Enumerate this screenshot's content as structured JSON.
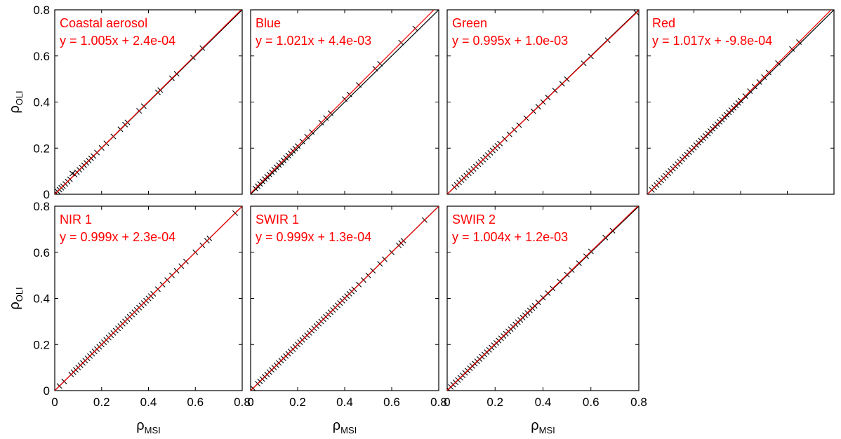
{
  "y_axis_label": {
    "symbol": "ρ",
    "subscript": "OLI"
  },
  "x_axis_label": {
    "symbol": "ρ",
    "subscript": "MSI"
  },
  "chart_data": [
    {
      "type": "scatter",
      "name": "Coastal aerosol",
      "fit_label": "y = 1.005x + 2.4e-04",
      "slope": 1.005,
      "intercept": 0.00024,
      "xlim": [
        0,
        0.8
      ],
      "ylim": [
        0,
        0.8
      ],
      "xticks": [
        "0",
        "0.2",
        "0.4",
        "0.6",
        "0.8"
      ],
      "yticks": [
        "0",
        "0.2",
        "0.4",
        "0.6",
        "0.8"
      ],
      "x": [
        0.005,
        0.012,
        0.02,
        0.028,
        0.035,
        0.045,
        0.055,
        0.065,
        0.075,
        0.085,
        0.095,
        0.105,
        0.115,
        0.125,
        0.135,
        0.145,
        0.155,
        0.165,
        0.18,
        0.2,
        0.22,
        0.25,
        0.28,
        0.3,
        0.31,
        0.36,
        0.38,
        0.44,
        0.45,
        0.5,
        0.52,
        0.59,
        0.63
      ],
      "y": [
        0.006,
        0.012,
        0.02,
        0.028,
        0.035,
        0.045,
        0.055,
        0.065,
        0.09,
        0.085,
        0.095,
        0.106,
        0.116,
        0.126,
        0.136,
        0.146,
        0.156,
        0.166,
        0.181,
        0.201,
        0.221,
        0.251,
        0.282,
        0.302,
        0.312,
        0.362,
        0.382,
        0.442,
        0.452,
        0.503,
        0.523,
        0.593,
        0.634
      ]
    },
    {
      "type": "scatter",
      "name": "Blue",
      "fit_label": "y = 1.021x + 4.4e-03",
      "slope": 1.021,
      "intercept": 0.0044,
      "xlim": [
        0,
        0.8
      ],
      "ylim": [
        0,
        0.8
      ],
      "xticks": [
        "0",
        "0.2",
        "0.4",
        "0.6",
        "0.8"
      ],
      "yticks": [
        "0",
        "0.2",
        "0.4",
        "0.6",
        "0.8"
      ],
      "x": [
        0.02,
        0.03,
        0.04,
        0.05,
        0.06,
        0.07,
        0.08,
        0.09,
        0.1,
        0.11,
        0.12,
        0.13,
        0.14,
        0.15,
        0.16,
        0.17,
        0.18,
        0.19,
        0.2,
        0.22,
        0.24,
        0.26,
        0.3,
        0.32,
        0.34,
        0.4,
        0.42,
        0.46,
        0.53,
        0.55,
        0.64,
        0.7
      ],
      "y": [
        0.025,
        0.035,
        0.045,
        0.056,
        0.066,
        0.076,
        0.086,
        0.096,
        0.107,
        0.117,
        0.127,
        0.137,
        0.147,
        0.158,
        0.168,
        0.178,
        0.188,
        0.198,
        0.209,
        0.229,
        0.25,
        0.27,
        0.311,
        0.331,
        0.352,
        0.413,
        0.433,
        0.474,
        0.545,
        0.566,
        0.658,
        0.719
      ]
    },
    {
      "type": "scatter",
      "name": "Green",
      "fit_label": "y = 0.995x + 1.0e-03",
      "slope": 0.995,
      "intercept": 0.001,
      "xlim": [
        0,
        0.8
      ],
      "ylim": [
        0,
        0.8
      ],
      "xticks": [
        "0",
        "0.2",
        "0.4",
        "0.6",
        "0.8"
      ],
      "yticks": [
        "0",
        "0.2",
        "0.4",
        "0.6",
        "0.8"
      ],
      "x": [
        0.03,
        0.04,
        0.05,
        0.06,
        0.07,
        0.08,
        0.09,
        0.1,
        0.11,
        0.12,
        0.13,
        0.14,
        0.15,
        0.16,
        0.17,
        0.18,
        0.19,
        0.2,
        0.21,
        0.22,
        0.24,
        0.26,
        0.28,
        0.3,
        0.33,
        0.36,
        0.38,
        0.4,
        0.42,
        0.45,
        0.48,
        0.5,
        0.57,
        0.6,
        0.67,
        0.79
      ],
      "y": [
        0.031,
        0.041,
        0.051,
        0.061,
        0.071,
        0.081,
        0.091,
        0.1,
        0.11,
        0.12,
        0.13,
        0.14,
        0.15,
        0.16,
        0.17,
        0.18,
        0.19,
        0.2,
        0.21,
        0.22,
        0.24,
        0.26,
        0.28,
        0.3,
        0.33,
        0.36,
        0.38,
        0.4,
        0.42,
        0.45,
        0.479,
        0.499,
        0.568,
        0.598,
        0.668,
        0.787
      ]
    },
    {
      "type": "scatter",
      "name": "Red",
      "fit_label": "y = 1.017x + -9.8e-04",
      "slope": 1.017,
      "intercept": -0.00098,
      "xlim": [
        0,
        0.8
      ],
      "ylim": [
        0,
        0.8
      ],
      "xticks": [
        "0",
        "0.2",
        "0.4",
        "0.6",
        "0.8"
      ],
      "yticks": [
        "0",
        "0.2",
        "0.4",
        "0.6",
        "0.8"
      ],
      "x": [
        0.02,
        0.03,
        0.04,
        0.05,
        0.06,
        0.07,
        0.08,
        0.09,
        0.1,
        0.11,
        0.12,
        0.13,
        0.14,
        0.15,
        0.16,
        0.17,
        0.18,
        0.19,
        0.2,
        0.21,
        0.22,
        0.23,
        0.24,
        0.25,
        0.26,
        0.27,
        0.28,
        0.29,
        0.3,
        0.31,
        0.32,
        0.33,
        0.34,
        0.35,
        0.36,
        0.37,
        0.38,
        0.39,
        0.4,
        0.42,
        0.44,
        0.46,
        0.48,
        0.5,
        0.52,
        0.56,
        0.62,
        0.65
      ],
      "y": [
        0.019,
        0.03,
        0.04,
        0.05,
        0.06,
        0.07,
        0.08,
        0.091,
        0.101,
        0.111,
        0.121,
        0.131,
        0.141,
        0.152,
        0.162,
        0.172,
        0.182,
        0.192,
        0.202,
        0.213,
        0.223,
        0.233,
        0.243,
        0.253,
        0.263,
        0.274,
        0.284,
        0.294,
        0.304,
        0.314,
        0.324,
        0.335,
        0.345,
        0.355,
        0.365,
        0.375,
        0.385,
        0.396,
        0.406,
        0.426,
        0.447,
        0.467,
        0.487,
        0.508,
        0.528,
        0.569,
        0.63,
        0.66
      ]
    },
    {
      "type": "scatter",
      "name": "NIR 1",
      "fit_label": "y = 0.999x + 2.3e-04",
      "slope": 0.999,
      "intercept": 0.00023,
      "xlim": [
        0,
        0.8
      ],
      "ylim": [
        0,
        0.8
      ],
      "xticks": [
        "0",
        "0.2",
        "0.4",
        "0.6",
        "0.8"
      ],
      "yticks": [
        "0",
        "0.2",
        "0.4",
        "0.6",
        "0.8"
      ],
      "x": [
        0.02,
        0.04,
        0.07,
        0.08,
        0.09,
        0.1,
        0.11,
        0.12,
        0.13,
        0.14,
        0.15,
        0.16,
        0.17,
        0.18,
        0.19,
        0.2,
        0.21,
        0.22,
        0.23,
        0.24,
        0.25,
        0.26,
        0.27,
        0.28,
        0.29,
        0.3,
        0.31,
        0.32,
        0.33,
        0.34,
        0.35,
        0.36,
        0.37,
        0.38,
        0.39,
        0.4,
        0.41,
        0.42,
        0.44,
        0.46,
        0.48,
        0.5,
        0.52,
        0.54,
        0.56,
        0.6,
        0.63,
        0.65,
        0.66,
        0.77
      ],
      "y": [
        0.02,
        0.04,
        0.07,
        0.08,
        0.09,
        0.1,
        0.11,
        0.12,
        0.13,
        0.14,
        0.15,
        0.16,
        0.17,
        0.18,
        0.19,
        0.2,
        0.21,
        0.22,
        0.23,
        0.24,
        0.25,
        0.26,
        0.27,
        0.28,
        0.29,
        0.3,
        0.31,
        0.32,
        0.33,
        0.34,
        0.35,
        0.36,
        0.37,
        0.38,
        0.39,
        0.4,
        0.41,
        0.42,
        0.44,
        0.46,
        0.48,
        0.5,
        0.52,
        0.54,
        0.56,
        0.6,
        0.63,
        0.65,
        0.66,
        0.77
      ]
    },
    {
      "type": "scatter",
      "name": "SWIR 1",
      "fit_label": "y = 0.999x + 1.3e-04",
      "slope": 0.999,
      "intercept": 0.00013,
      "xlim": [
        0,
        0.8
      ],
      "ylim": [
        0,
        0.8
      ],
      "xticks": [
        "0",
        "0.2",
        "0.4",
        "0.6",
        "0.8"
      ],
      "yticks": [
        "0",
        "0.2",
        "0.4",
        "0.6",
        "0.8"
      ],
      "x": [
        0.01,
        0.03,
        0.04,
        0.05,
        0.06,
        0.07,
        0.08,
        0.09,
        0.1,
        0.11,
        0.12,
        0.13,
        0.14,
        0.15,
        0.16,
        0.17,
        0.18,
        0.19,
        0.2,
        0.21,
        0.22,
        0.23,
        0.24,
        0.25,
        0.26,
        0.27,
        0.28,
        0.29,
        0.3,
        0.31,
        0.32,
        0.33,
        0.34,
        0.35,
        0.36,
        0.37,
        0.38,
        0.39,
        0.4,
        0.41,
        0.42,
        0.43,
        0.44,
        0.46,
        0.48,
        0.5,
        0.52,
        0.55,
        0.57,
        0.6,
        0.63,
        0.64,
        0.65,
        0.74
      ],
      "y": [
        0.01,
        0.03,
        0.04,
        0.05,
        0.06,
        0.07,
        0.08,
        0.09,
        0.1,
        0.11,
        0.12,
        0.13,
        0.14,
        0.15,
        0.16,
        0.17,
        0.18,
        0.19,
        0.2,
        0.21,
        0.22,
        0.23,
        0.24,
        0.25,
        0.26,
        0.27,
        0.28,
        0.29,
        0.3,
        0.31,
        0.32,
        0.33,
        0.34,
        0.35,
        0.36,
        0.37,
        0.38,
        0.39,
        0.4,
        0.41,
        0.42,
        0.43,
        0.44,
        0.46,
        0.48,
        0.5,
        0.52,
        0.55,
        0.57,
        0.6,
        0.63,
        0.64,
        0.65,
        0.74
      ]
    },
    {
      "type": "scatter",
      "name": "SWIR 2",
      "fit_label": "y = 1.004x + 1.2e-03",
      "slope": 1.004,
      "intercept": 0.0012,
      "xlim": [
        0,
        0.8
      ],
      "ylim": [
        0,
        0.8
      ],
      "xticks": [
        "0",
        "0.2",
        "0.4",
        "0.6",
        "0.8"
      ],
      "yticks": [
        "0",
        "0.2",
        "0.4",
        "0.6",
        "0.8"
      ],
      "x": [
        0.005,
        0.015,
        0.025,
        0.035,
        0.045,
        0.055,
        0.065,
        0.075,
        0.085,
        0.095,
        0.105,
        0.115,
        0.125,
        0.135,
        0.145,
        0.155,
        0.165,
        0.175,
        0.185,
        0.195,
        0.205,
        0.215,
        0.225,
        0.235,
        0.245,
        0.255,
        0.265,
        0.275,
        0.285,
        0.295,
        0.305,
        0.315,
        0.325,
        0.335,
        0.345,
        0.355,
        0.365,
        0.38,
        0.4,
        0.42,
        0.44,
        0.47,
        0.5,
        0.52,
        0.55,
        0.58,
        0.6,
        0.66,
        0.69
      ],
      "y": [
        0.006,
        0.016,
        0.026,
        0.036,
        0.046,
        0.056,
        0.066,
        0.077,
        0.087,
        0.097,
        0.107,
        0.117,
        0.127,
        0.137,
        0.147,
        0.157,
        0.167,
        0.177,
        0.187,
        0.197,
        0.207,
        0.217,
        0.227,
        0.237,
        0.247,
        0.257,
        0.267,
        0.277,
        0.287,
        0.297,
        0.307,
        0.317,
        0.327,
        0.337,
        0.348,
        0.358,
        0.368,
        0.383,
        0.403,
        0.423,
        0.443,
        0.473,
        0.503,
        0.523,
        0.553,
        0.583,
        0.604,
        0.664,
        0.694
      ]
    }
  ]
}
